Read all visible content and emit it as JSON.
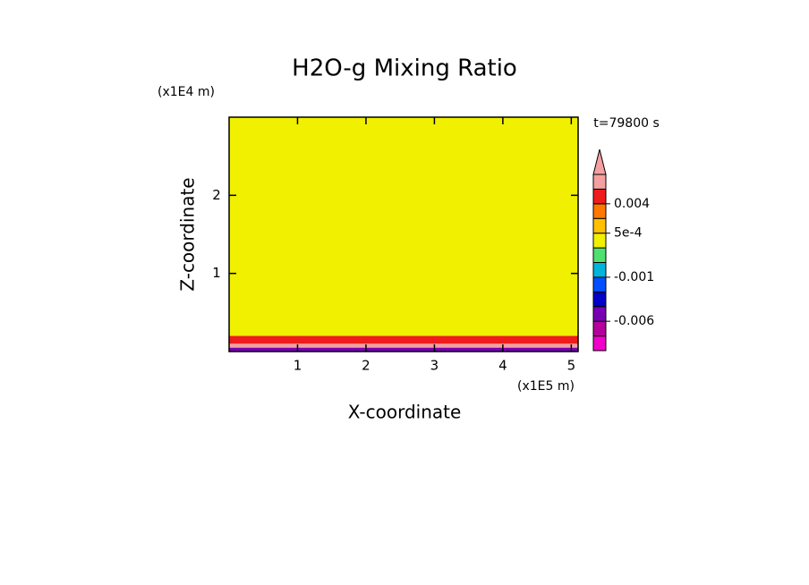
{
  "chart_data": {
    "type": "contour",
    "title": "H2O-g Mixing Ratio",
    "xlabel": "X-coordinate",
    "ylabel": "Z-coordinate",
    "xunit": "(x1E5 m)",
    "yunit": "(x1E4 m)",
    "time_label": "t=79800 s",
    "xlim": [
      0,
      5.1
    ],
    "ylim": [
      0,
      3
    ],
    "xticks": [
      1,
      2,
      3,
      4,
      5
    ],
    "yticks": [
      1,
      2
    ],
    "bands": [
      {
        "zlim": [
          0,
          0.05
        ],
        "value": -0.005
      },
      {
        "zlim": [
          0.05,
          0.1
        ],
        "value": 0.01
      },
      {
        "zlim": [
          0.1,
          0.2
        ],
        "value": 0.006
      },
      {
        "zlim": [
          0.2,
          3
        ],
        "value": 0.0002
      }
    ],
    "colorbar": {
      "levels": [
        -0.01,
        -0.008,
        -0.006,
        -0.004,
        -0.002,
        -0.001,
        -0.0005,
        0,
        0.0005,
        0.001,
        0.004,
        0.008,
        0.012
      ],
      "colors": [
        "#f000c8",
        "#b4009c",
        "#7800b4",
        "#0000c8",
        "#0050ff",
        "#00b4dc",
        "#50e070",
        "#f0f000",
        "#ffc000",
        "#ff7800",
        "#ee1c1c",
        "#f4a0a0"
      ],
      "ticks": [
        {
          "value": -0.006,
          "label": "-0.006"
        },
        {
          "value": -0.001,
          "label": "-0.001"
        },
        {
          "value": 0.0005,
          "label": "5e-4"
        },
        {
          "value": 0.004,
          "label": "0.004"
        }
      ]
    }
  }
}
